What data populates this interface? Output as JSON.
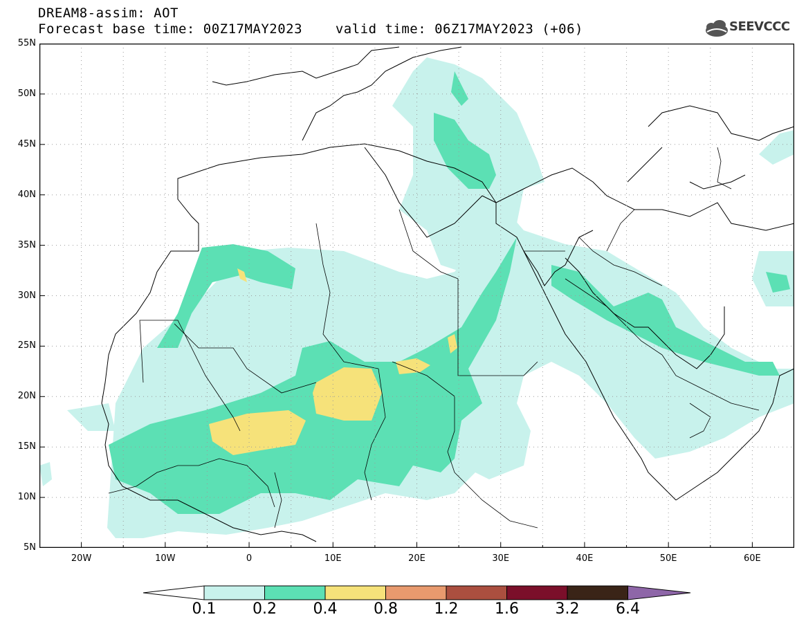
{
  "title": {
    "line1": "DREAM8-assim: AOT",
    "line2_left": "Forecast base time: 00Z17MAY2023",
    "line2_right": "valid time: 06Z17MAY2023 (+06)"
  },
  "logo": {
    "text": "SEEVCCC",
    "icon": "cloud-icon"
  },
  "map": {
    "projection": "lat-lon",
    "lon_range": [
      -25,
      65
    ],
    "lat_range": [
      5,
      55
    ],
    "grid": "dotted",
    "lat_labels": [
      "55N",
      "50N",
      "45N",
      "40N",
      "35N",
      "30N",
      "25N",
      "20N",
      "15N",
      "10N",
      "5N"
    ],
    "lon_labels": [
      "20W",
      "10W",
      "0",
      "10E",
      "20E",
      "30E",
      "40E",
      "50E",
      "60E"
    ]
  },
  "colorbar": {
    "labels": [
      "0.1",
      "0.2",
      "0.4",
      "0.8",
      "1.2",
      "1.6",
      "3.2",
      "6.4"
    ],
    "colors": [
      "#c8f2ec",
      "#5ce0b4",
      "#f6e27a",
      "#e89a6e",
      "#ab4f3f",
      "#7b0f2a",
      "#3a2417",
      "#8e66a8"
    ],
    "below_color": "#ffffff"
  }
}
